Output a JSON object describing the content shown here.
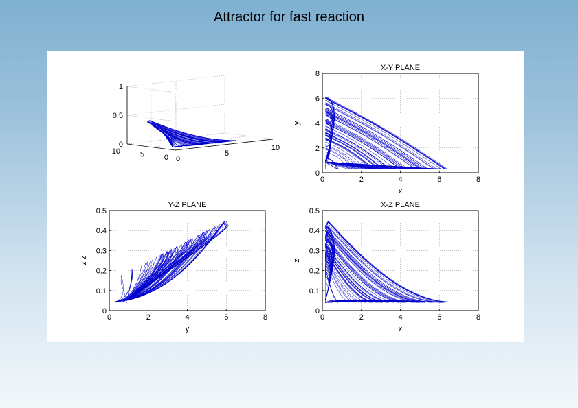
{
  "slide": {
    "title": "Attractor for fast reaction"
  },
  "chart_data": [
    {
      "id": "plot3d",
      "type": "line",
      "title": "",
      "xlabel": "",
      "ylabel": "",
      "zlabel": "",
      "x_ticks": [
        "0",
        "5",
        "10"
      ],
      "y_ticks": [
        "0",
        "5",
        "10"
      ],
      "z_ticks": [
        "0",
        "0.5",
        "1"
      ],
      "xlim": [
        0,
        10
      ],
      "ylim": [
        0,
        10
      ],
      "zlim": [
        0,
        1
      ],
      "grid": true,
      "series_color": "#0000cc"
    },
    {
      "id": "xy",
      "type": "line",
      "title": "X-Y PLANE",
      "xlabel": "x",
      "ylabel": "y",
      "xlim": [
        0,
        8
      ],
      "ylim": [
        0,
        8
      ],
      "x_ticks": [
        "0",
        "2",
        "4",
        "6",
        "8"
      ],
      "y_ticks": [
        "0",
        "2",
        "4",
        "6",
        "8"
      ],
      "grid": true,
      "series_color": "#0000cc"
    },
    {
      "id": "yz",
      "type": "line",
      "title": "Y-Z PLANE",
      "xlabel": "y",
      "ylabel": "z z",
      "xlim": [
        0,
        8
      ],
      "ylim": [
        0,
        0.5
      ],
      "x_ticks": [
        "0",
        "2",
        "4",
        "6",
        "8"
      ],
      "y_ticks": [
        "0",
        "0.1",
        "0.2",
        "0.3",
        "0.4",
        "0.5"
      ],
      "grid": true,
      "series_color": "#0000cc"
    },
    {
      "id": "xz",
      "type": "line",
      "title": "X-Z PLANE",
      "xlabel": "x",
      "ylabel": "z",
      "xlim": [
        0,
        8
      ],
      "ylim": [
        0,
        0.5
      ],
      "x_ticks": [
        "0",
        "2",
        "4",
        "6",
        "8"
      ],
      "y_ticks": [
        "0",
        "0.1",
        "0.2",
        "0.3",
        "0.4",
        "0.5"
      ],
      "grid": true,
      "series_color": "#0000cc"
    }
  ]
}
